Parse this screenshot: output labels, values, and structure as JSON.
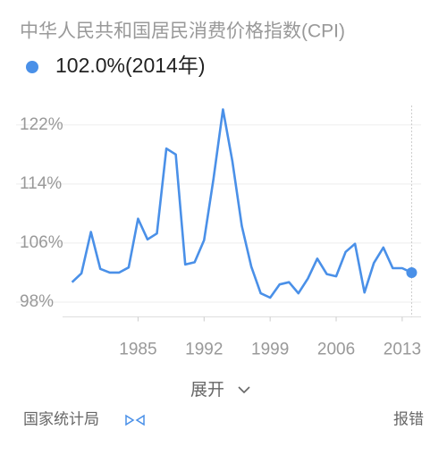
{
  "chart_data": {
    "type": "line",
    "title": "中华人民共和国居民消费价格指数(CPI)",
    "current_label": "102.0%(2014年)",
    "x": [
      1978,
      1979,
      1980,
      1981,
      1982,
      1983,
      1984,
      1985,
      1986,
      1987,
      1988,
      1989,
      1990,
      1991,
      1992,
      1993,
      1994,
      1995,
      1996,
      1997,
      1998,
      1999,
      2000,
      2001,
      2002,
      2003,
      2004,
      2005,
      2006,
      2007,
      2008,
      2009,
      2010,
      2011,
      2012,
      2013,
      2014
    ],
    "series": [
      {
        "name": "CPI",
        "color": "#4a90e8",
        "values": [
          100.7,
          101.9,
          107.5,
          102.5,
          102.0,
          102.0,
          102.7,
          109.3,
          106.5,
          107.3,
          118.8,
          118.0,
          103.1,
          103.4,
          106.4,
          114.7,
          124.1,
          117.1,
          108.3,
          102.8,
          99.2,
          98.6,
          100.4,
          100.7,
          99.2,
          101.2,
          103.9,
          101.8,
          101.5,
          104.8,
          105.9,
          99.3,
          103.3,
          105.4,
          102.6,
          102.6,
          102.0
        ]
      }
    ],
    "xlim": [
      1977,
      2015
    ],
    "ylim": [
      96,
      125
    ],
    "xticks": [
      1985,
      1992,
      1999,
      2006,
      2013
    ],
    "yticks": [
      {
        "value": 98,
        "label": "98%"
      },
      {
        "value": 106,
        "label": "106%"
      },
      {
        "value": 114,
        "label": "114%"
      },
      {
        "value": 122,
        "label": "122%"
      }
    ],
    "grid": true,
    "expand_label": "展开",
    "source": "国家统计局",
    "report": "报错"
  }
}
